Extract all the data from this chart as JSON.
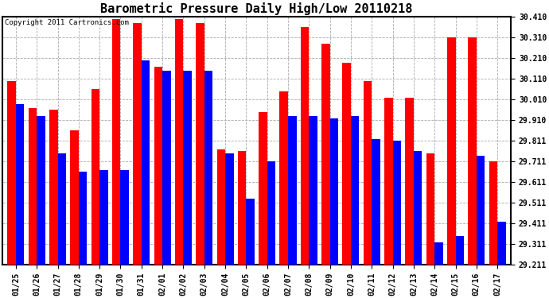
{
  "title": "Barometric Pressure Daily High/Low 20110218",
  "copyright": "Copyright 2011 Cartronics.com",
  "dates": [
    "01/25",
    "01/26",
    "01/27",
    "01/28",
    "01/29",
    "01/30",
    "01/31",
    "02/01",
    "02/02",
    "02/03",
    "02/04",
    "02/05",
    "02/06",
    "02/07",
    "02/08",
    "02/09",
    "02/10",
    "02/11",
    "02/12",
    "02/13",
    "02/14",
    "02/15",
    "02/16",
    "02/17"
  ],
  "highs": [
    30.1,
    29.97,
    29.96,
    29.86,
    30.06,
    30.4,
    30.38,
    30.17,
    30.4,
    30.38,
    29.77,
    29.76,
    29.95,
    30.05,
    30.36,
    30.28,
    30.19,
    30.1,
    30.02,
    30.02,
    29.75,
    30.31,
    30.31,
    29.71
  ],
  "lows": [
    29.99,
    29.93,
    29.75,
    29.66,
    29.67,
    29.67,
    30.2,
    30.15,
    30.15,
    30.15,
    29.75,
    29.53,
    29.71,
    29.93,
    29.93,
    29.92,
    29.93,
    29.82,
    29.81,
    29.76,
    29.32,
    29.35,
    29.74,
    29.42
  ],
  "high_color": "#FF0000",
  "low_color": "#0000FF",
  "bg_color": "#FFFFFF",
  "grid_color": "#AAAAAA",
  "bar_width": 0.4,
  "ymin": 29.211,
  "ymax": 30.41,
  "yticks": [
    29.211,
    29.311,
    29.411,
    29.511,
    29.611,
    29.711,
    29.811,
    29.91,
    30.01,
    30.11,
    30.21,
    30.31,
    30.41
  ],
  "ytick_labels": [
    "29.211",
    "29.311",
    "29.411",
    "29.511",
    "29.611",
    "29.711",
    "29.811",
    "29.910",
    "30.010",
    "30.110",
    "30.210",
    "30.310",
    "30.410"
  ],
  "title_fontsize": 11,
  "tick_fontsize": 7,
  "copyright_fontsize": 6.5
}
